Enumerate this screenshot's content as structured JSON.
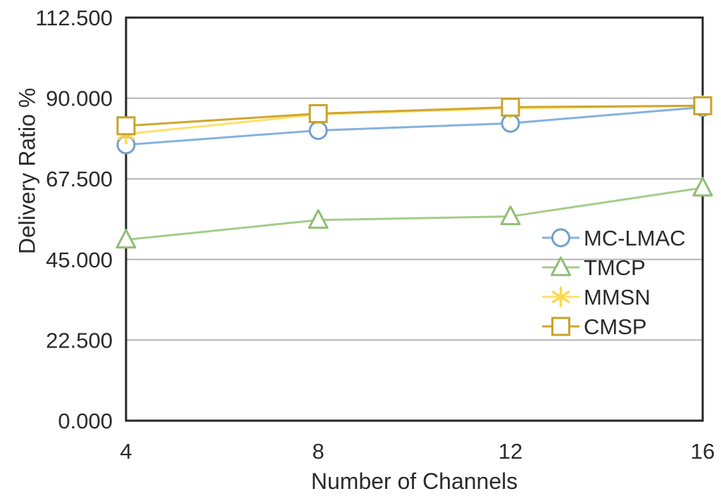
{
  "chart_data": {
    "type": "line",
    "title": "",
    "xlabel": "Number of Channels",
    "ylabel": "Delivery Ratio %",
    "x": [
      4,
      8,
      12,
      16
    ],
    "xtick_labels": [
      "4",
      "8",
      "12",
      "16"
    ],
    "xlim": [
      4,
      16
    ],
    "ylim": [
      0,
      112.5
    ],
    "yticks": [
      0,
      22.5,
      45,
      67.5,
      90,
      112.5
    ],
    "ytick_labels": [
      "0.000",
      "22.500",
      "45.000",
      "67.500",
      "90.000",
      "112.500"
    ],
    "grid": "horizontal",
    "legend_position": "inside-right",
    "series": [
      {
        "name": "MC-LMAC",
        "marker": "circle",
        "color": "#85B2DF",
        "marker_color": "#6FA0D2",
        "values": [
          77,
          81,
          83,
          87.5
        ]
      },
      {
        "name": "TMCP",
        "marker": "triangle",
        "color": "#A3CD8A",
        "marker_color": "#8FBE74",
        "values": [
          50.5,
          56,
          57,
          65
        ]
      },
      {
        "name": "MMSN",
        "marker": "asterisk",
        "color": "#FFE06A",
        "marker_color": "#FFD84D",
        "values": [
          80,
          85.5,
          87.2,
          87.9
        ]
      },
      {
        "name": "CMSP",
        "marker": "square",
        "color": "#D0A62E",
        "marker_color": "#C9A227",
        "values": [
          82.3,
          85.7,
          87.5,
          87.9
        ]
      }
    ],
    "colors": {
      "grid": "#B3B3B3",
      "axis": "#262626",
      "text": "#2B2B2B",
      "marker_fill": "#FFFFFF",
      "background": "#FFFFFF"
    }
  }
}
